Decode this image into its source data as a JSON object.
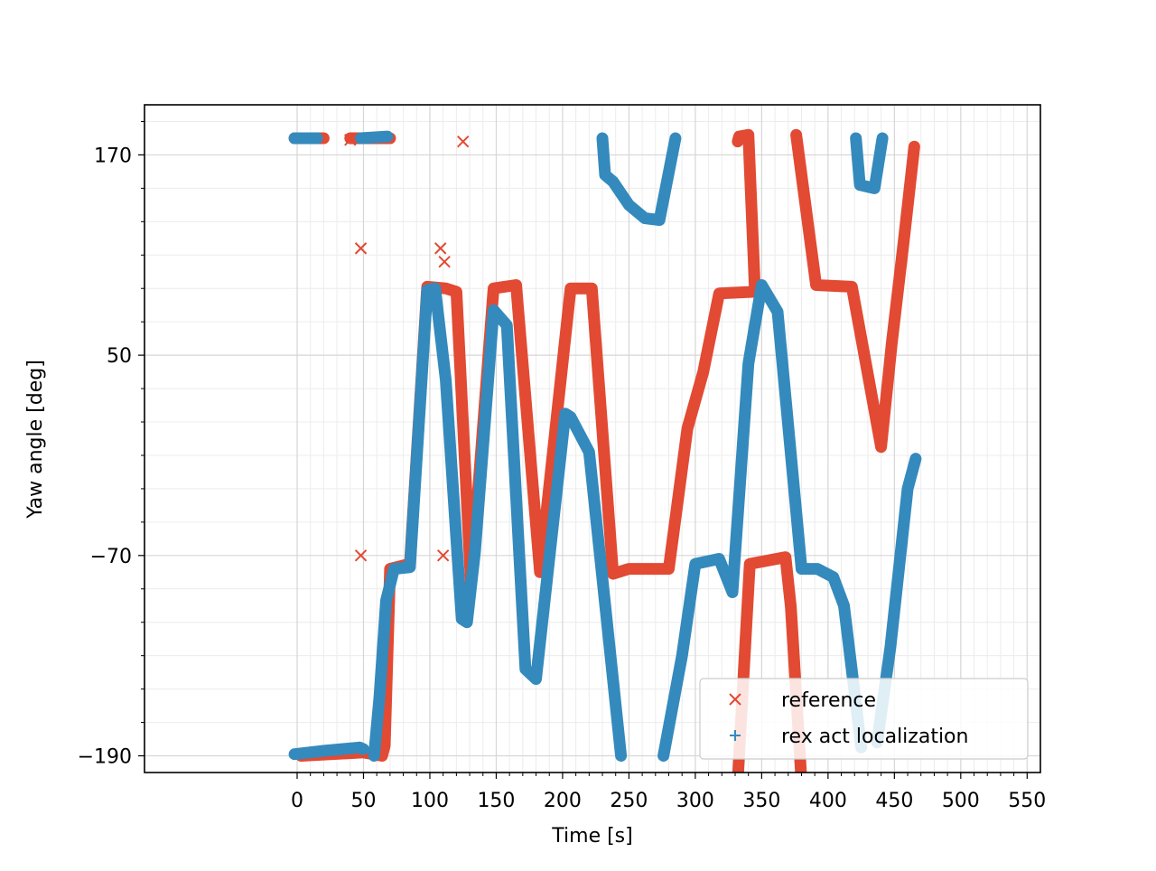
{
  "chart_data": {
    "type": "scatter",
    "title": "",
    "xlabel": "Time [s]",
    "ylabel": "Yaw angle [deg]",
    "xlim": [
      -115,
      560
    ],
    "ylim": [
      -200,
      200
    ],
    "x_ticks": [
      0,
      50,
      100,
      150,
      200,
      250,
      300,
      350,
      400,
      450,
      500,
      550
    ],
    "x_tick_labels": [
      "0",
      "50",
      "100",
      "150",
      "200",
      "250",
      "300",
      "350",
      "400",
      "450",
      "500",
      "550"
    ],
    "y_ticks": [
      -190,
      -70,
      50,
      170
    ],
    "y_tick_labels": [
      "−190",
      "−70",
      "50",
      "170"
    ],
    "grid": true,
    "legend_position": "lower-right",
    "series": [
      {
        "name": "reference",
        "marker": "x",
        "color": "#e24a33",
        "paths": [
          [
            [
              -2,
              180
            ],
            [
              20,
              180
            ]
          ],
          [
            [
              40,
              180
            ],
            [
              70,
              180
            ]
          ],
          [
            [
              3,
              -190
            ],
            [
              50,
              -188
            ],
            [
              64,
              -190
            ],
            [
              66,
              -184
            ],
            [
              70,
              -78
            ],
            [
              85,
              -75
            ],
            [
              98,
              91
            ],
            [
              112,
              90
            ],
            [
              120,
              88
            ],
            [
              131,
              -87
            ],
            [
              148,
              90
            ],
            [
              165,
              92
            ],
            [
              183,
              -80
            ],
            [
              206,
              90
            ],
            [
              222,
              90
            ],
            [
              238,
              -81
            ],
            [
              250,
              -78
            ],
            [
              280,
              -78
            ],
            [
              294,
              6
            ],
            [
              306,
              40
            ],
            [
              318,
              87
            ],
            [
              345,
              88
            ],
            [
              340,
              182
            ],
            [
              333,
              181
            ],
            [
              332,
              178
            ]
          ],
          [
            [
              331,
              -218
            ],
            [
              341,
              -75
            ],
            [
              368,
              -71
            ],
            [
              372,
              -101
            ],
            [
              381,
              -218
            ]
          ],
          [
            [
              376,
              182
            ],
            [
              391,
              92
            ],
            [
              418,
              91
            ],
            [
              440,
              -5
            ],
            [
              448,
              57
            ],
            [
              457,
              118
            ],
            [
              465,
              175
            ]
          ]
        ],
        "isolated": [
          [
            40,
            179
          ],
          [
            48,
            114
          ],
          [
            48,
            -70
          ],
          [
            108,
            114
          ],
          [
            111,
            106
          ],
          [
            110,
            -70
          ],
          [
            125,
            178
          ]
        ]
      },
      {
        "name": "rex act localization",
        "marker": "+",
        "color": "#348abd",
        "paths": [
          [
            [
              -2,
              -189
            ],
            [
              20,
              -187
            ],
            [
              47,
              -185
            ],
            [
              50,
              -186
            ]
          ],
          [
            [
              -2,
              180
            ],
            [
              15,
              180
            ]
          ],
          [
            [
              48,
              180
            ],
            [
              68,
              181
            ]
          ],
          [
            [
              58,
              -190
            ],
            [
              62,
              -155
            ],
            [
              67,
              -97
            ],
            [
              73,
              -78
            ],
            [
              85,
              -77
            ],
            [
              98,
              89
            ],
            [
              104,
              90
            ],
            [
              112,
              35
            ],
            [
              124,
              -108
            ],
            [
              128,
              -110
            ],
            [
              134,
              -68
            ],
            [
              148,
              77
            ],
            [
              158,
              68
            ],
            [
              172,
              -138
            ],
            [
              180,
              -144
            ],
            [
              202,
              15
            ],
            [
              206,
              13
            ],
            [
              220,
              -8
            ],
            [
              244,
              -190
            ]
          ],
          [
            [
              230,
              180
            ],
            [
              232,
              158
            ],
            [
              238,
              154
            ],
            [
              250,
              140
            ],
            [
              262,
              132
            ],
            [
              273,
              131
            ],
            [
              285,
              180
            ]
          ],
          [
            [
              276,
              -190
            ],
            [
              290,
              -130
            ],
            [
              300,
              -75
            ],
            [
              318,
              -72
            ],
            [
              328,
              -92
            ],
            [
              340,
              45
            ],
            [
              350,
              92
            ],
            [
              362,
              76
            ],
            [
              380,
              -78
            ],
            [
              392,
              -78
            ],
            [
              404,
              -83
            ],
            [
              412,
              -100
            ],
            [
              425,
              -185
            ]
          ],
          [
            [
              421,
              180
            ],
            [
              424,
              152
            ],
            [
              435,
              150
            ],
            [
              441,
              180
            ]
          ],
          [
            [
              437,
              -182
            ],
            [
              447,
              -125
            ],
            [
              460,
              -30
            ],
            [
              466,
              -12
            ]
          ]
        ],
        "isolated": []
      }
    ]
  }
}
